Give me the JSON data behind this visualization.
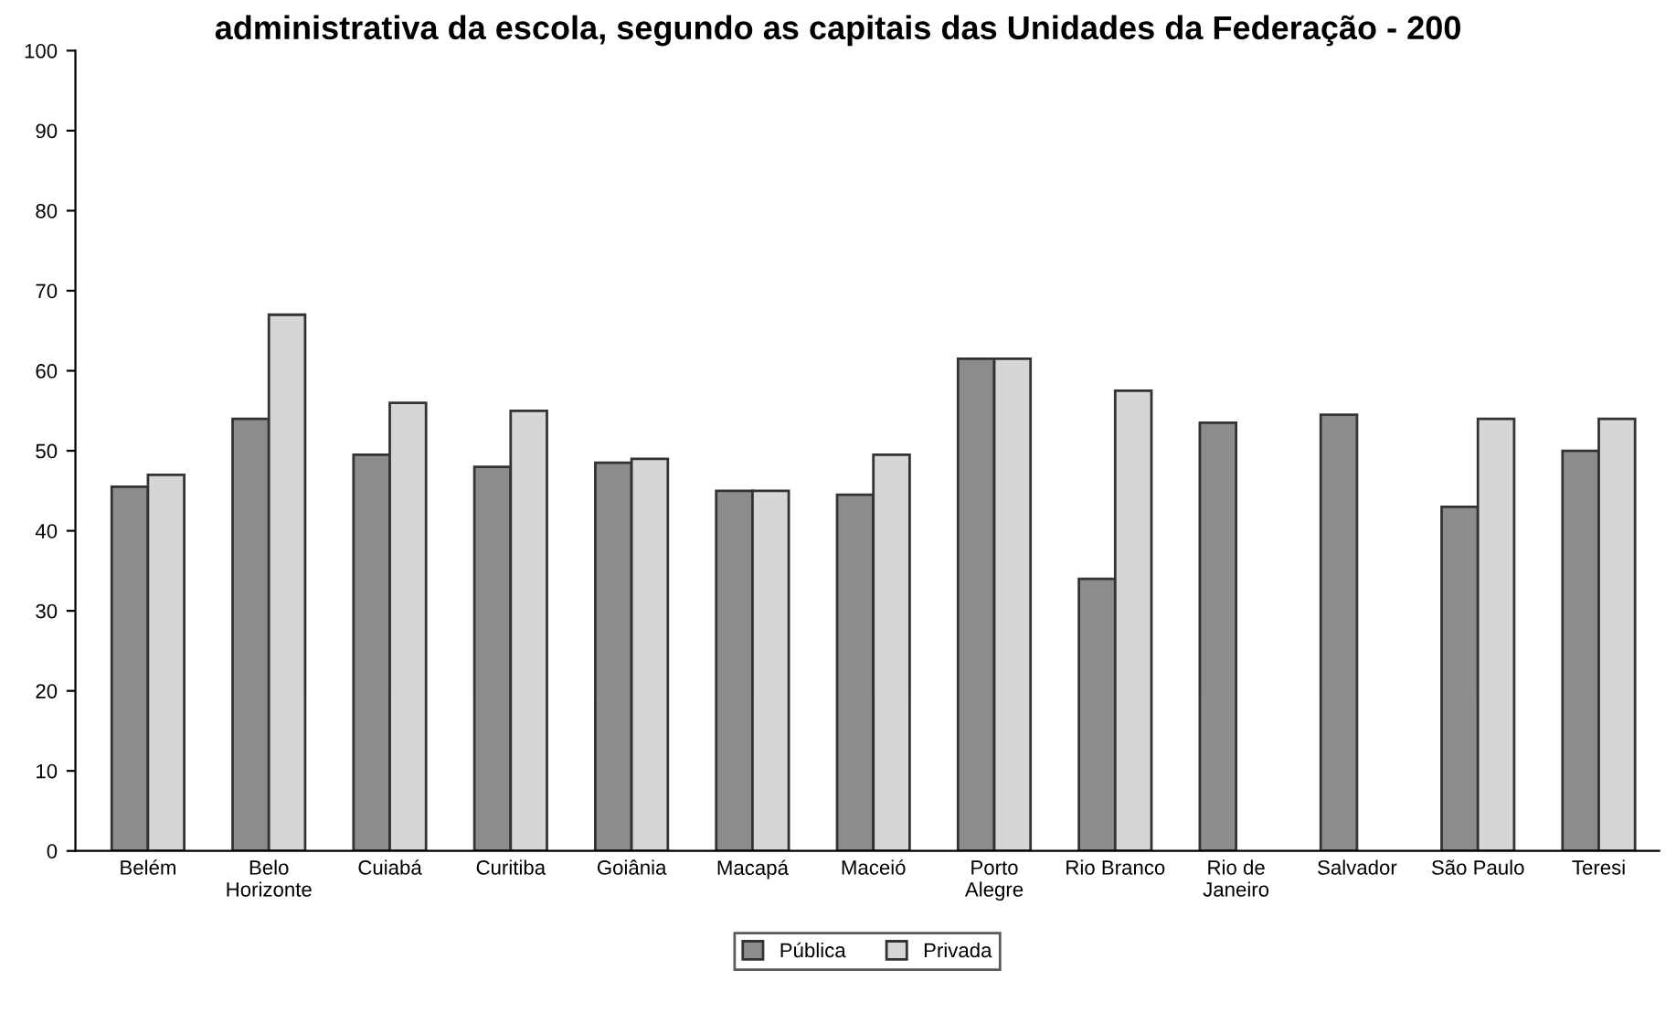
{
  "chart_data": {
    "type": "bar",
    "title": "administrativa da escola, segundo as capitais das Unidades da Federação - 200",
    "categories": [
      "Belém",
      "Belo\nHorizonte",
      "Cuiabá",
      "Curitiba",
      "Goiânia",
      "Macapá",
      "Maceió",
      "Porto\nAlegre",
      "Rio Branco",
      "Rio de\nJaneiro",
      "Salvador",
      "São Paulo",
      "Teresi"
    ],
    "series": [
      {
        "name": "Pública",
        "color": "#8c8c8c",
        "values": [
          45.5,
          54,
          49.5,
          48,
          48.5,
          45,
          44.5,
          61.5,
          34,
          53.5,
          54.5,
          43,
          50
        ]
      },
      {
        "name": "Privada",
        "color": "#d6d6d6",
        "values": [
          47,
          67,
          56,
          55,
          49,
          45,
          49.5,
          61.5,
          57.5,
          null,
          null,
          54,
          54
        ]
      }
    ],
    "ylim": [
      0,
      100
    ],
    "yticks": [
      0,
      10,
      20,
      30,
      40,
      50,
      60,
      70,
      80,
      90,
      100
    ],
    "grid": false,
    "legend": "bottom"
  }
}
